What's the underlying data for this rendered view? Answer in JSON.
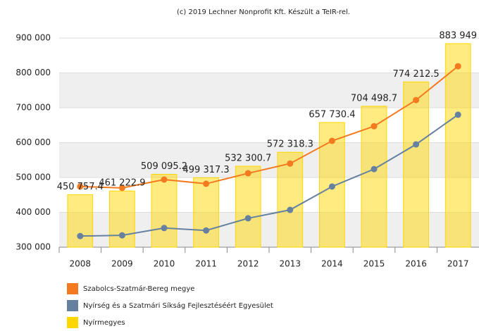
{
  "chart_data": {
    "type": "bar",
    "title": "(c) 2019 Lechner Nonprofit Kft. Készült a TeIR-rel.",
    "categories": [
      "2008",
      "2009",
      "2010",
      "2011",
      "2012",
      "2013",
      "2014",
      "2015",
      "2016",
      "2017"
    ],
    "series": [
      {
        "name": "Nyírmegyes",
        "type": "bar",
        "color": "#ffd700",
        "values": [
          450757.4,
          461222.9,
          509095.2,
          499317.3,
          532300.7,
          572318.3,
          657730.4,
          704498.7,
          774212.5,
          883949
        ],
        "value_labels": [
          "450 757.4",
          "461 222.9",
          "509 095.2",
          "499 317.3",
          "532 300.7",
          "572 318.3",
          "657 730.4",
          "704 498.7",
          "774 212.5",
          "883 949"
        ]
      },
      {
        "name": "Szabolcs-Szatmár-Bereg megye",
        "type": "line",
        "color": "#f47a20",
        "values": [
          474000,
          470000,
          494000,
          482000,
          512000,
          540000,
          605000,
          647000,
          722000,
          819000
        ]
      },
      {
        "name": "Nyírség és a Szatmári Síkság Fejlesztéséért Egyesület",
        "type": "line",
        "color": "#6680a0",
        "values": [
          332000,
          334000,
          355000,
          348000,
          383000,
          407000,
          474000,
          524000,
          595000,
          680000
        ]
      }
    ],
    "legend_order": [
      1,
      2,
      0
    ],
    "ylim": [
      300000,
      900000
    ],
    "yticks": [
      {
        "value": 300000,
        "label": "300 000"
      },
      {
        "value": 400000,
        "label": "400 000"
      },
      {
        "value": 500000,
        "label": "500 000"
      },
      {
        "value": 600000,
        "label": "600 000"
      },
      {
        "value": 700000,
        "label": "700 000"
      },
      {
        "value": 800000,
        "label": "800 000"
      },
      {
        "value": 900000,
        "label": "900 000"
      }
    ],
    "grid": true,
    "legend": "bottom"
  }
}
